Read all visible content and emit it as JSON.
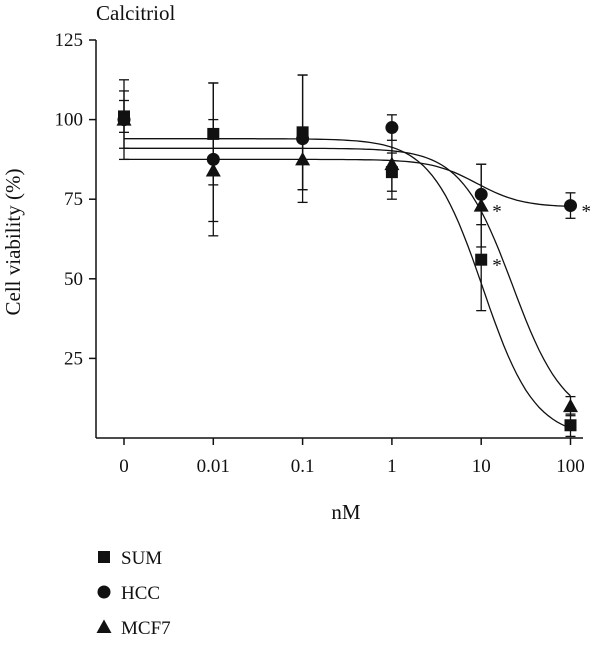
{
  "chart_data": {
    "type": "scatter",
    "title": "Calcitriol",
    "xlabel": "nM",
    "ylabel": "Cell viability (%)",
    "x_categories": [
      "0",
      "0.01",
      "0.1",
      "1",
      "10",
      "100"
    ],
    "ylim": [
      0,
      125
    ],
    "y_ticks": [
      25,
      50,
      75,
      100,
      125
    ],
    "grid": false,
    "legend_position": "bottom-left",
    "series": [
      {
        "name": "SUM",
        "marker": "square",
        "values": [
          101,
          95.5,
          96,
          83.5,
          56,
          4
        ],
        "error": [
          5,
          16,
          18,
          6,
          16,
          3.5
        ],
        "significant": [
          false,
          false,
          false,
          false,
          true,
          false
        ],
        "fit": {
          "top": 94,
          "bottom": 0,
          "ec50_log": 1.02,
          "slope": 1.5
        }
      },
      {
        "name": "HCC",
        "marker": "circle",
        "values": [
          100,
          87.5,
          94,
          97.5,
          76.5,
          73
        ],
        "error": [
          12.5,
          24,
          20,
          4,
          9.5,
          4
        ],
        "significant": [
          false,
          false,
          false,
          false,
          false,
          true
        ],
        "fit": {
          "top": 87.5,
          "bottom": 72.5,
          "ec50_log": 0.95,
          "slope": 1.7
        }
      },
      {
        "name": "MCF7",
        "marker": "triangle",
        "values": [
          100,
          84,
          87.5,
          86,
          73,
          10
        ],
        "error": [
          9,
          16,
          9.5,
          11,
          13,
          3
        ],
        "significant": [
          false,
          false,
          false,
          false,
          true,
          false
        ],
        "fit": {
          "top": 91,
          "bottom": 5,
          "ec50_log": 1.35,
          "slope": 1.5
        }
      }
    ],
    "significance_marker": "*"
  }
}
